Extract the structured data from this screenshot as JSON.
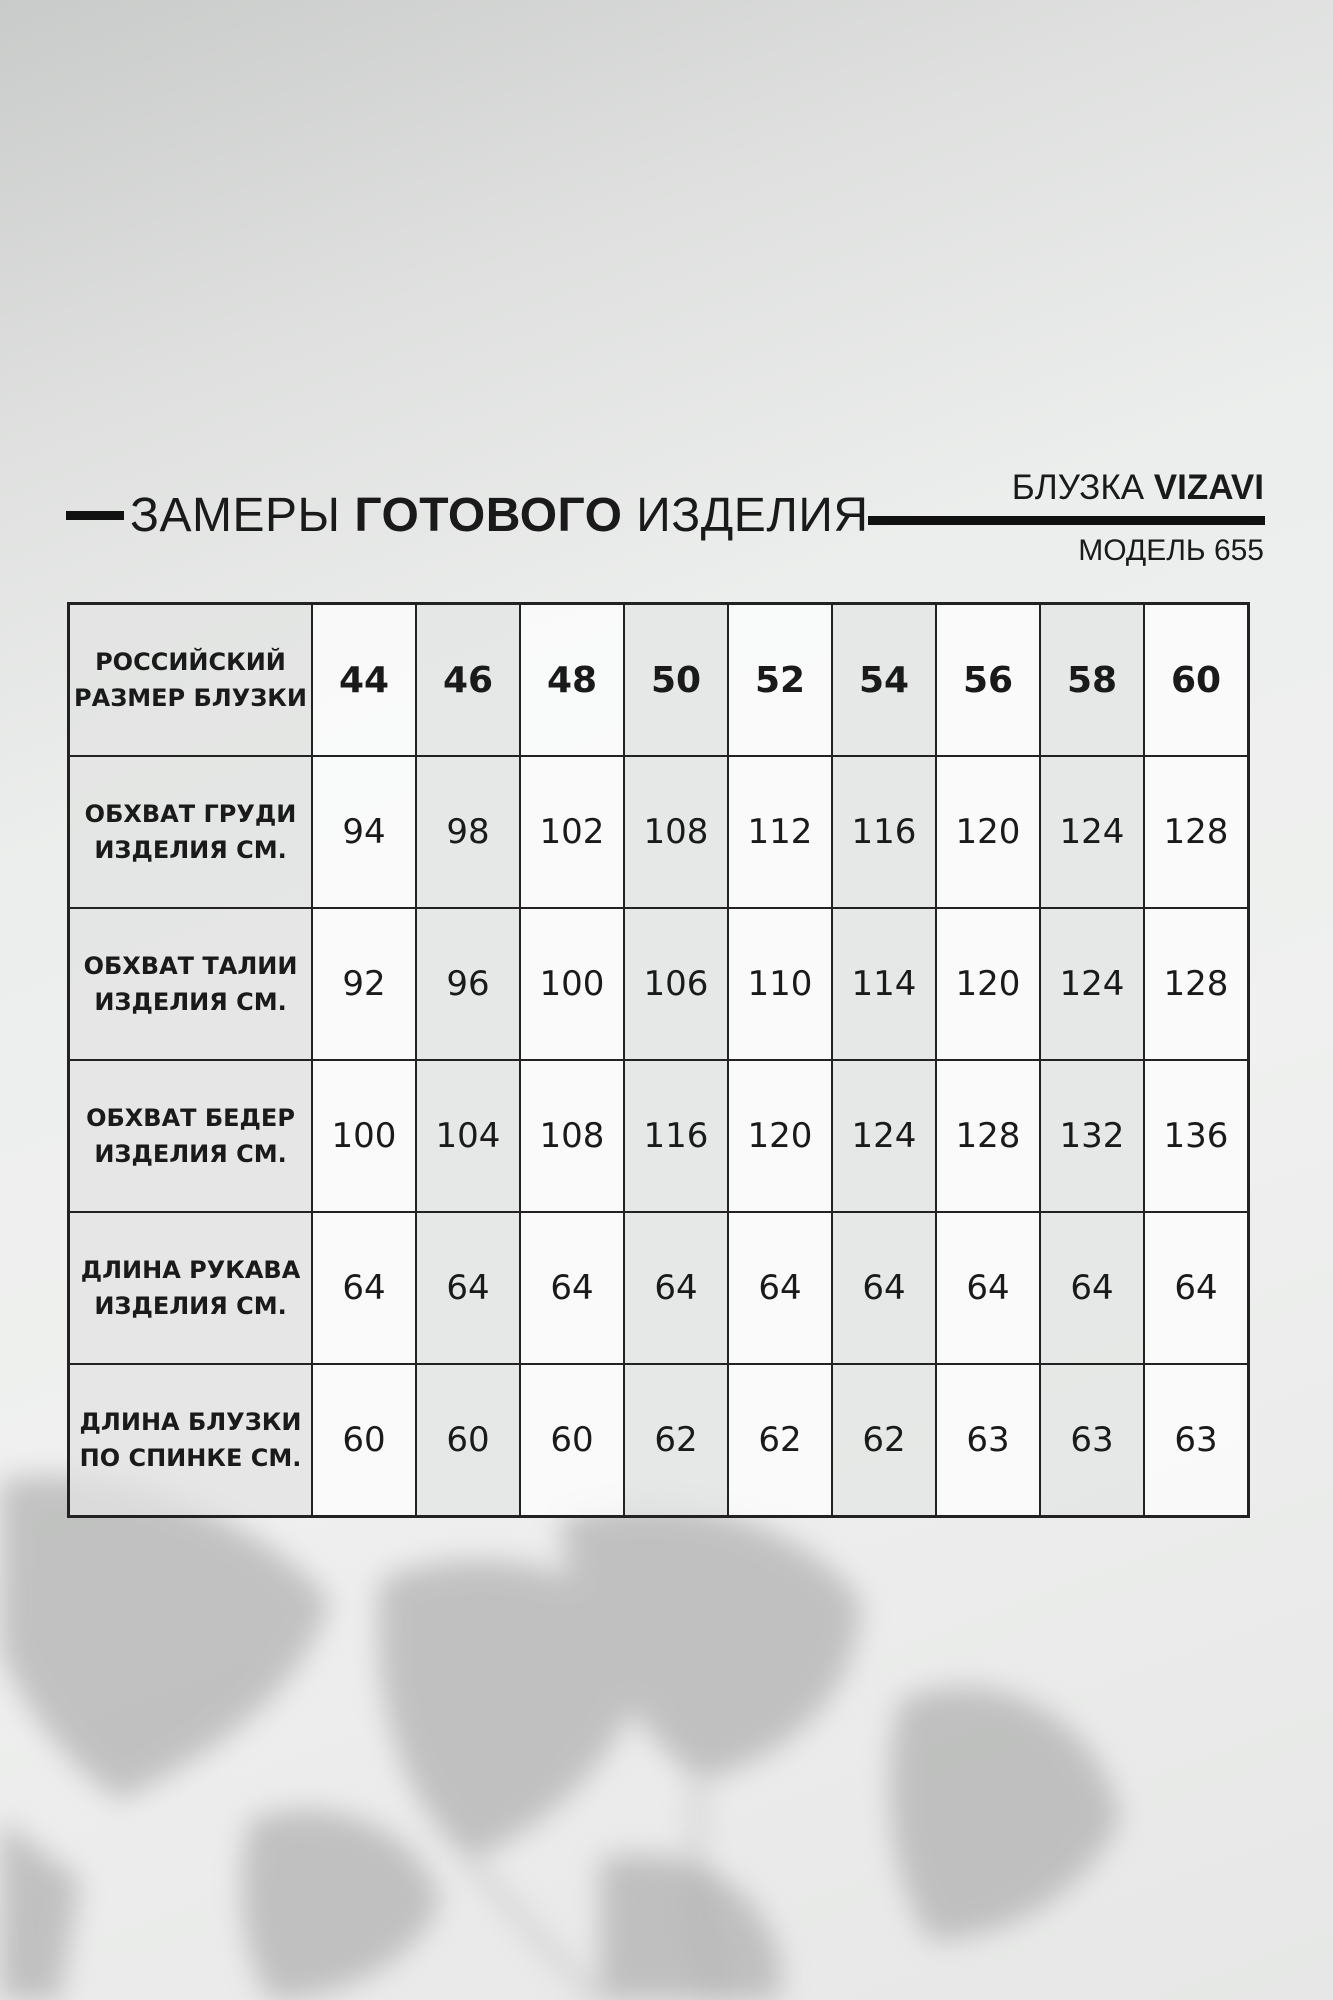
{
  "heading": {
    "part1": "ЗАМЕРЫ",
    "part2": "ГОТОВОГО",
    "part3": "ИЗДЕЛИЯ"
  },
  "product": {
    "type": "БЛУЗКА",
    "brand": "VIZAVI",
    "model": "МОДЕЛЬ 655"
  },
  "table": {
    "header": {
      "label": "РОССИЙСКИЙ РАЗМЕР БЛУЗКИ",
      "sizes": [
        "44",
        "46",
        "48",
        "50",
        "52",
        "54",
        "56",
        "58",
        "60"
      ]
    },
    "rows": [
      {
        "label": "ОБХВАТ ГРУДИ ИЗДЕЛИЯ СМ.",
        "values": [
          "94",
          "98",
          "102",
          "108",
          "112",
          "116",
          "120",
          "124",
          "128"
        ]
      },
      {
        "label": "ОБХВАТ ТАЛИИ ИЗДЕЛИЯ СМ.",
        "values": [
          "92",
          "96",
          "100",
          "106",
          "110",
          "114",
          "120",
          "124",
          "128"
        ]
      },
      {
        "label": "ОБХВАТ БЕДЕР ИЗДЕЛИЯ СМ.",
        "values": [
          "100",
          "104",
          "108",
          "116",
          "120",
          "124",
          "128",
          "132",
          "136"
        ]
      },
      {
        "label": "ДЛИНА РУКАВА ИЗДЕЛИЯ СМ.",
        "values": [
          "64",
          "64",
          "64",
          "64",
          "64",
          "64",
          "64",
          "64",
          "64"
        ]
      },
      {
        "label": "ДЛИНА БЛУЗКИ ПО СПИНКЕ СМ.",
        "values": [
          "60",
          "60",
          "60",
          "62",
          "62",
          "62",
          "63",
          "63",
          "63"
        ]
      }
    ]
  }
}
